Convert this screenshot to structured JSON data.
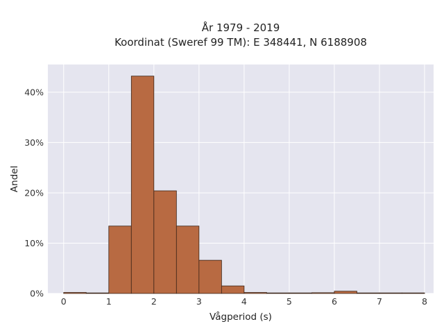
{
  "chart_data": {
    "type": "bar",
    "title_line1": "År 1979 - 2019",
    "title_line2": "Koordinat (Sweref 99 TM): E 348441, N 6188908",
    "xlabel": "Vågperiod (s)",
    "ylabel": "Andel",
    "bin_width": 0.5,
    "bins": [
      {
        "x0": 0.0,
        "x1": 0.5,
        "value": 0.2
      },
      {
        "x0": 0.5,
        "x1": 1.0,
        "value": 0.0
      },
      {
        "x0": 1.0,
        "x1": 1.5,
        "value": 13.4
      },
      {
        "x0": 1.5,
        "x1": 2.0,
        "value": 43.2
      },
      {
        "x0": 2.0,
        "x1": 2.5,
        "value": 20.4
      },
      {
        "x0": 2.5,
        "x1": 3.0,
        "value": 13.4
      },
      {
        "x0": 3.0,
        "x1": 3.5,
        "value": 6.6
      },
      {
        "x0": 3.5,
        "x1": 4.0,
        "value": 1.5
      },
      {
        "x0": 4.0,
        "x1": 4.5,
        "value": 0.2
      },
      {
        "x0": 4.5,
        "x1": 5.0,
        "value": 0.05
      },
      {
        "x0": 5.0,
        "x1": 5.5,
        "value": 0.0
      },
      {
        "x0": 5.5,
        "x1": 6.0,
        "value": 0.15
      },
      {
        "x0": 6.0,
        "x1": 6.5,
        "value": 0.45
      },
      {
        "x0": 6.5,
        "x1": 7.0,
        "value": 0.05
      },
      {
        "x0": 7.0,
        "x1": 7.5,
        "value": 0.05
      },
      {
        "x0": 7.5,
        "x1": 8.0,
        "value": 0.05
      }
    ],
    "xlim": [
      -0.35,
      8.2
    ],
    "ylim": [
      0,
      45.5
    ],
    "xticks": [
      0,
      1,
      2,
      3,
      4,
      5,
      6,
      7,
      8
    ],
    "xtick_labels": [
      "0",
      "1",
      "2",
      "3",
      "4",
      "5",
      "6",
      "7",
      "8"
    ],
    "yticks": [
      0,
      10,
      20,
      30,
      40
    ],
    "ytick_labels": [
      "0%",
      "10%",
      "20%",
      "30%",
      "40%"
    ],
    "grid": true,
    "colors": {
      "bar_fill": "#b86a42",
      "bar_edge": "#3a2418",
      "plot_background": "#e5e5ef",
      "grid": "#ffffff"
    }
  }
}
